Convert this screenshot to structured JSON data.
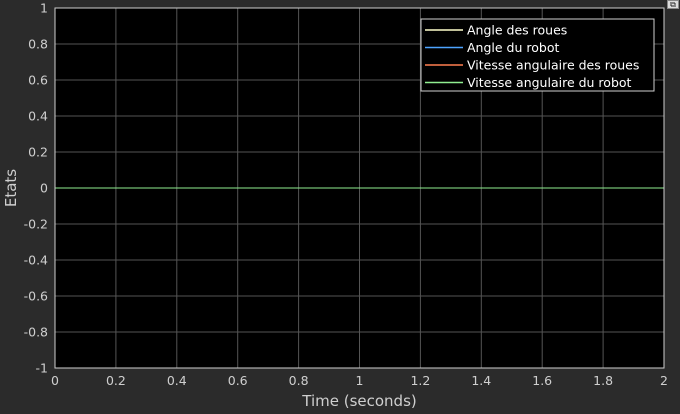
{
  "chart_data": {
    "type": "line",
    "xlabel": "Time (seconds)",
    "ylabel": "Etats",
    "xlim": [
      0,
      2
    ],
    "ylim": [
      -1,
      1
    ],
    "xticks": [
      0,
      0.2,
      0.4,
      0.6,
      0.8,
      1,
      1.2,
      1.4,
      1.6,
      1.8,
      2
    ],
    "xtick_labels": [
      "0",
      "0.2",
      "0.4",
      "0.6",
      "0.8",
      "1",
      "1.2",
      "1.4",
      "1.6",
      "1.8",
      "2"
    ],
    "yticks": [
      1,
      0.8,
      0.6,
      0.4,
      0.2,
      0,
      -0.2,
      -0.4,
      -0.6,
      -0.8,
      -1
    ],
    "ytick_labels": [
      "1",
      "0.8",
      "0.6",
      "0.4",
      "0.2",
      "0",
      "-0.2",
      "-0.4",
      "-0.6",
      "-0.8",
      "-1"
    ],
    "grid": true,
    "legend_position": "top-right",
    "series": [
      {
        "name": "Angle des roues",
        "color": "#ffffcc",
        "x": [
          0,
          2
        ],
        "y": [
          0,
          0
        ]
      },
      {
        "name": "Angle du robot",
        "color": "#4da3ff",
        "x": [
          0,
          2
        ],
        "y": [
          0,
          0
        ]
      },
      {
        "name": "Vitesse angulaire des roues",
        "color": "#ff7f50",
        "x": [
          0,
          2
        ],
        "y": [
          0,
          0
        ]
      },
      {
        "name": "Vitesse angulaire du robot",
        "color": "#90ee90",
        "x": [
          0,
          2
        ],
        "y": [
          0,
          0
        ]
      }
    ]
  },
  "colors": {
    "figure_background": "#2b2b2b",
    "plot_background": "#000000",
    "grid": "#555555",
    "text": "#cfcfcf"
  },
  "ui": {
    "corner_button_icon": "restore-icon",
    "corner_button_glyph": "⧉"
  }
}
